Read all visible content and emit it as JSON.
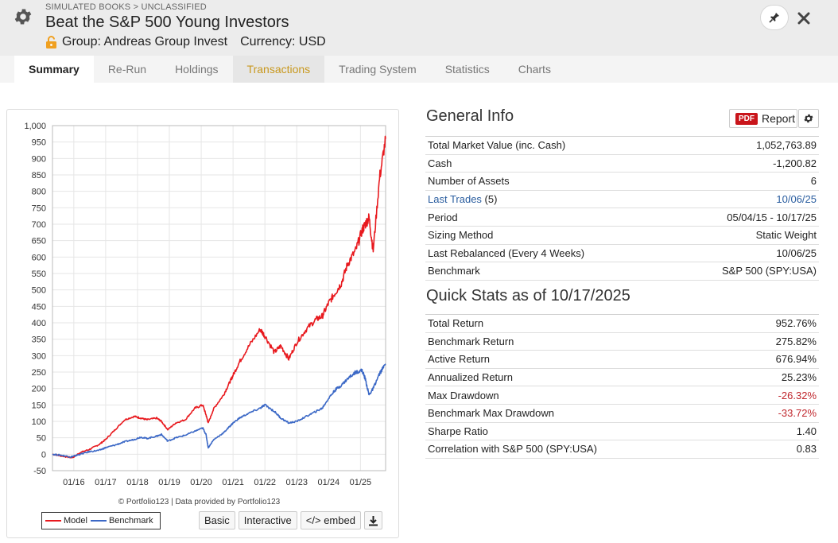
{
  "header": {
    "breadcrumb": "SIMULATED BOOKS > UNCLASSIFIED",
    "title": "Beat the S&P 500 Young Investors",
    "group": "Group: Andreas Group Invest",
    "currency": "Currency: USD"
  },
  "tabs": [
    {
      "label": "Summary"
    },
    {
      "label": "Re-Run"
    },
    {
      "label": "Holdings"
    },
    {
      "label": "Transactions"
    },
    {
      "label": "Trading System"
    },
    {
      "label": "Statistics"
    },
    {
      "label": "Charts"
    }
  ],
  "chart_data": {
    "type": "line",
    "ylim": [
      -50,
      1000
    ],
    "yticks": [
      "1,000",
      "950",
      "900",
      "850",
      "800",
      "750",
      "700",
      "650",
      "600",
      "550",
      "500",
      "450",
      "400",
      "350",
      "300",
      "250",
      "200",
      "150",
      "100",
      "50",
      "0",
      "-50"
    ],
    "xticks": [
      "01/16",
      "01/17",
      "01/18",
      "01/19",
      "01/20",
      "01/21",
      "01/22",
      "01/23",
      "01/24",
      "01/25"
    ],
    "credit": "© Portfolio123 | Data provided by Portfolio123",
    "x": [
      2015.33,
      2015.6,
      2015.9,
      2016.0,
      2016.2,
      2016.5,
      2016.8,
      2017.0,
      2017.3,
      2017.6,
      2017.9,
      2018.1,
      2018.3,
      2018.6,
      2018.75,
      2018.95,
      2019.2,
      2019.5,
      2019.8,
      2020.05,
      2020.15,
      2020.22,
      2020.4,
      2020.7,
      2020.9,
      2021.0,
      2021.2,
      2021.5,
      2021.85,
      2022.0,
      2022.3,
      2022.5,
      2022.75,
      2023.0,
      2023.3,
      2023.6,
      2023.8,
      2024.0,
      2024.2,
      2024.4,
      2024.6,
      2024.85,
      2025.05,
      2025.15,
      2025.27,
      2025.4,
      2025.6,
      2025.79
    ],
    "series": [
      {
        "name": "Model",
        "color": "#e8191e",
        "values": [
          0,
          -5,
          -10,
          -8,
          5,
          15,
          30,
          45,
          75,
          105,
          115,
          110,
          105,
          110,
          100,
          75,
          95,
          105,
          140,
          150,
          120,
          95,
          140,
          180,
          220,
          240,
          280,
          330,
          380,
          360,
          310,
          330,
          290,
          340,
          380,
          410,
          420,
          460,
          490,
          520,
          580,
          620,
          680,
          700,
          720,
          620,
          840,
          960
        ]
      },
      {
        "name": "Benchmark",
        "color": "#3b68c6",
        "values": [
          0,
          -3,
          -8,
          -6,
          0,
          8,
          12,
          20,
          28,
          38,
          45,
          52,
          48,
          55,
          60,
          40,
          50,
          58,
          70,
          80,
          60,
          20,
          45,
          65,
          85,
          95,
          110,
          125,
          140,
          150,
          130,
          110,
          95,
          100,
          115,
          130,
          140,
          170,
          195,
          210,
          230,
          250,
          255,
          230,
          180,
          200,
          245,
          275
        ]
      }
    ]
  },
  "chart_controls": {
    "legend_model": "Model",
    "legend_benchmark": "Benchmark",
    "basic": "Basic",
    "interactive": "Interactive",
    "embed": "</> embed"
  },
  "general_info": {
    "title": "General Info",
    "pdf_badge": "PDF",
    "report_label": "Report",
    "rows": [
      {
        "label": "Total Market Value (inc. Cash)",
        "value": "1,052,763.89"
      },
      {
        "label": "Cash",
        "value": "-1,200.82"
      },
      {
        "label": "Number of Assets",
        "value": "6"
      },
      {
        "label": "Last Trades",
        "label_extra": " (5)",
        "value": "10/06/25"
      },
      {
        "label": "Period",
        "value": "05/04/15 - 10/17/25"
      },
      {
        "label": "Sizing Method",
        "value": "Static Weight"
      },
      {
        "label": "Last Rebalanced (Every 4 Weeks)",
        "value": "10/06/25"
      },
      {
        "label": "Benchmark",
        "value": "S&P 500 (SPY:USA)"
      }
    ]
  },
  "quick_stats": {
    "title": "Quick Stats as of 10/17/2025",
    "rows": [
      {
        "label": "Total Return",
        "value": "952.76%"
      },
      {
        "label": "Benchmark Return",
        "value": "275.82%"
      },
      {
        "label": "Active Return",
        "value": "676.94%"
      },
      {
        "label": "Annualized Return",
        "value": "25.23%"
      },
      {
        "label": "Max Drawdown",
        "value": "-26.32%"
      },
      {
        "label": "Benchmark Max Drawdown",
        "value": "-33.72%"
      },
      {
        "label": "Sharpe Ratio",
        "value": "1.40"
      },
      {
        "label": "Correlation with S&P 500 (SPY:USA)",
        "value": "0.83"
      }
    ]
  }
}
